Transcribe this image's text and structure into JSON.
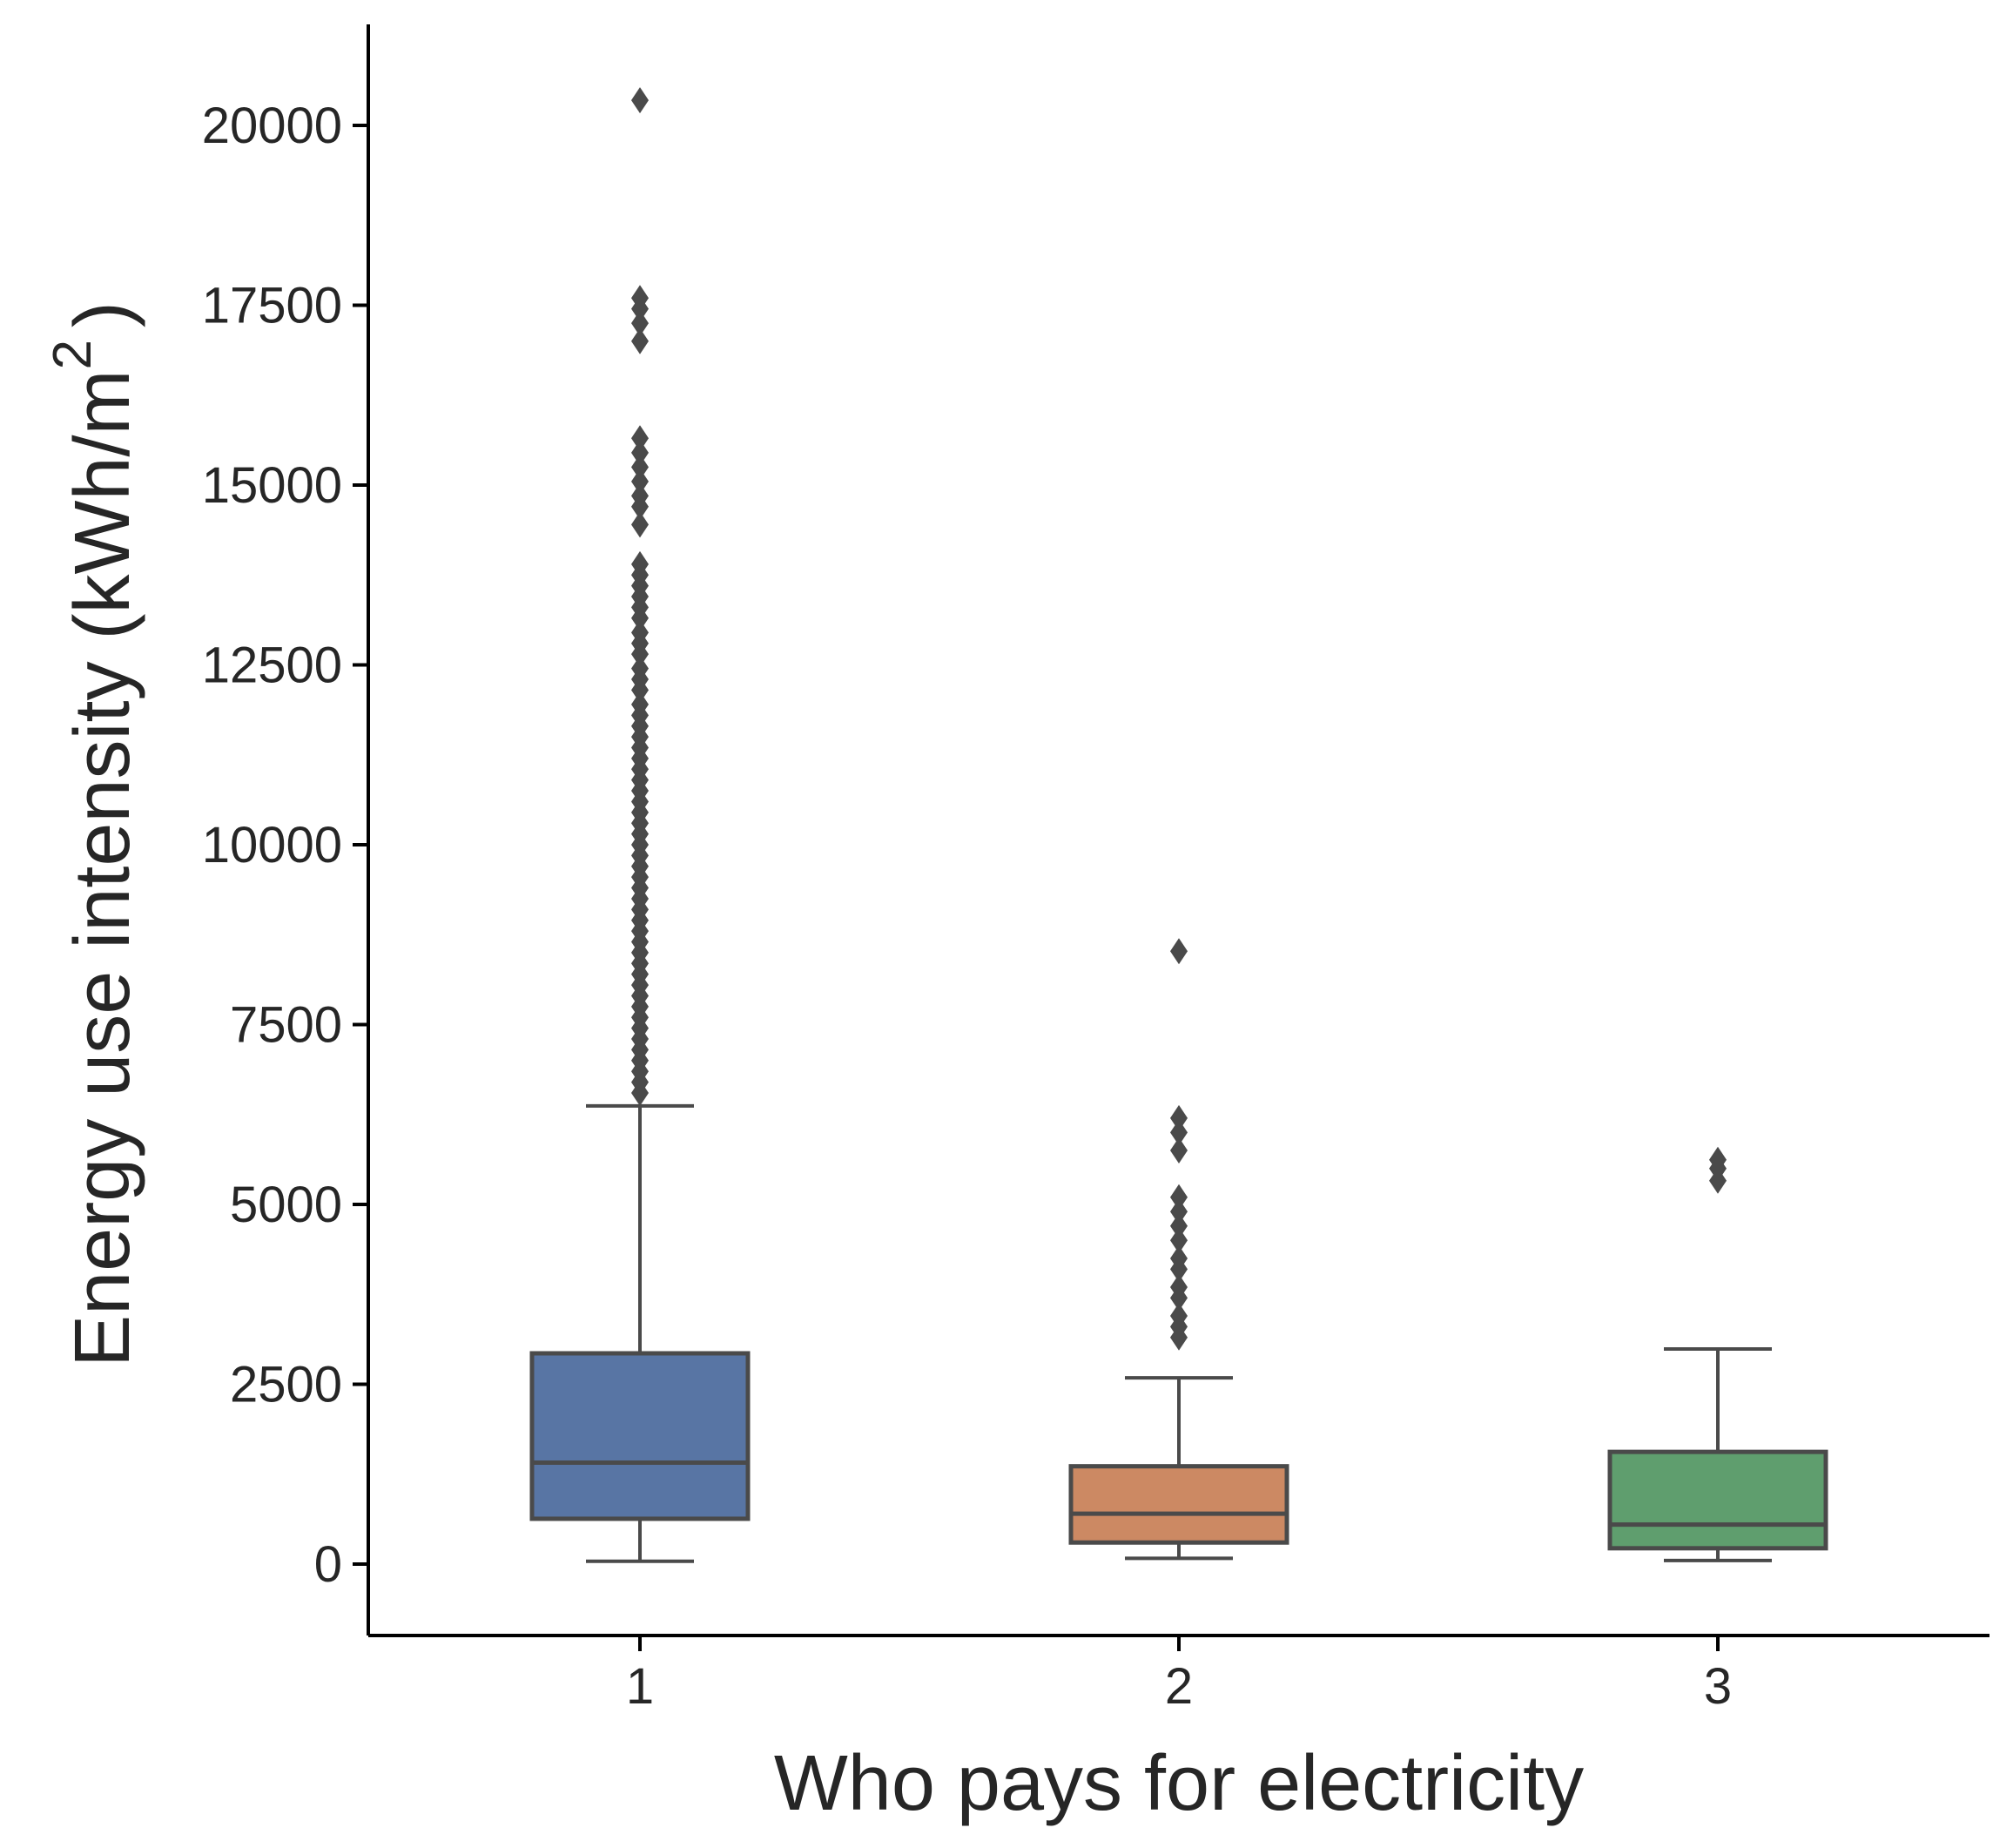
{
  "chart_data": {
    "type": "box",
    "title": "",
    "xlabel": "Who pays for electricity",
    "ylabel_main": "Energy use intensity (kWh/m",
    "ylabel_sup": "2",
    "ylabel_close": ")",
    "ylim": [
      -1000,
      21300
    ],
    "yticks": [
      0,
      2500,
      5000,
      7500,
      10000,
      12500,
      15000,
      17500,
      20000
    ],
    "categories": [
      "1",
      "2",
      "3"
    ],
    "grid": false,
    "colors": {
      "box": [
        "#5875a4",
        "#cc8963",
        "#5f9e6e"
      ],
      "line": "#4a4a4a",
      "axis": "#000000"
    },
    "boxes": [
      {
        "category": "1",
        "whisker_low": 40,
        "q1": 630,
        "median": 1410,
        "q3": 2930,
        "whisker_high": 6370,
        "outliers": [
          20350,
          17600,
          17450,
          17250,
          17000,
          15650,
          15450,
          15250,
          15050,
          14850,
          14700,
          14450,
          13900,
          13750,
          13600,
          13450,
          13300,
          13150,
          12950,
          12800,
          12650,
          12450,
          12300,
          12150,
          11950,
          11800,
          11650,
          11500,
          11350,
          11200,
          11050,
          10900,
          10750,
          10600,
          10450,
          10300,
          10150,
          10000,
          9850,
          9700,
          9550,
          9400,
          9250,
          9100,
          8950,
          8800,
          8650,
          8500,
          8350,
          8200,
          8050,
          7900,
          7750,
          7600,
          7450,
          7300,
          7150,
          7000,
          6850,
          6700,
          6550
        ]
      },
      {
        "category": "2",
        "whisker_low": 80,
        "q1": 300,
        "median": 700,
        "q3": 1360,
        "whisker_high": 2590,
        "outliers": [
          8520,
          6200,
          6000,
          5750,
          5100,
          4900,
          4700,
          4500,
          4250,
          4100,
          3850,
          3700,
          3450,
          3300,
          3150
        ]
      },
      {
        "category": "3",
        "whisker_low": 50,
        "q1": 220,
        "median": 550,
        "q3": 1560,
        "whisker_high": 2990,
        "outliers": [
          5620,
          5500,
          5330
        ]
      }
    ]
  }
}
